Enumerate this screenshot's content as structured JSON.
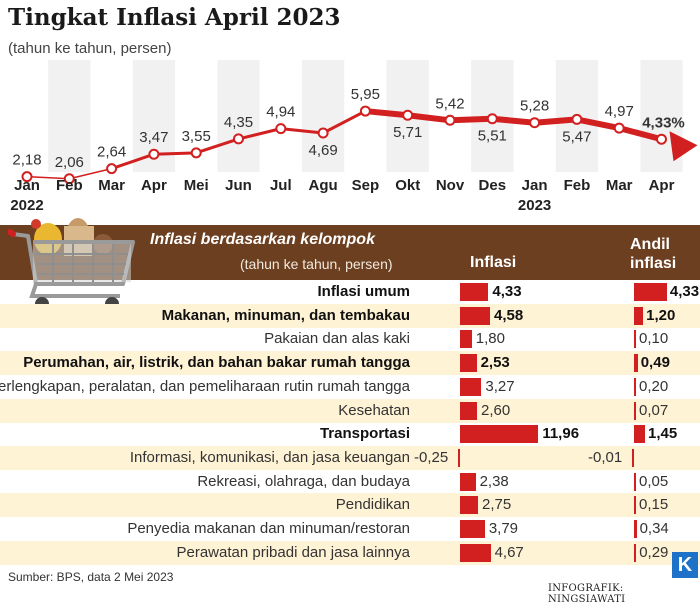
{
  "header": {
    "title": "Tingkat Inflasi April 2023",
    "subtitle": "(tahun ke tahun, persen)"
  },
  "table_header": {
    "group_title": "Inflasi berdasarkan kelompok",
    "group_subtitle": "(tahun ke tahun, persen)",
    "col_inflasi": "Inflasi",
    "col_andil_1": "Andil",
    "col_andil_2": "inflasi"
  },
  "footer": {
    "source": "Sumber: BPS, data 2 Mei 2023",
    "credit": "INFOGRAFIK: NINGSIAWATI",
    "logo": "K"
  },
  "colors": {
    "accent_red": "#d21f1f",
    "header_brown": "#6b3f1f",
    "row_shade": "#fff3d6"
  },
  "icons": [
    "shopping-cart-icon",
    "arrow-right-icon"
  ],
  "chart_data": [
    {
      "type": "line",
      "title": "Tingkat Inflasi April 2023",
      "subtitle": "(tahun ke tahun, persen)",
      "x": [
        "Jan",
        "Feb",
        "Mar",
        "Apr",
        "Mei",
        "Jun",
        "Jul",
        "Agu",
        "Sep",
        "Okt",
        "Nov",
        "Des",
        "Jan",
        "Feb",
        "Mar",
        "Apr"
      ],
      "x_year_labels": {
        "0": "2022",
        "12": "2023"
      },
      "values": [
        2.18,
        2.06,
        2.64,
        3.47,
        3.55,
        4.35,
        4.94,
        4.69,
        5.95,
        5.71,
        5.42,
        5.51,
        5.28,
        5.47,
        4.97,
        4.33
      ],
      "value_labels": [
        "2,18",
        "2,06",
        "2,64",
        "3,47",
        "3,55",
        "4,35",
        "4,94",
        "4,69",
        "5,95",
        "5,71",
        "5,42",
        "5,51",
        "5,28",
        "5,47",
        "4,97",
        "4,33%"
      ],
      "highlight_last": true,
      "grid": "alternating vertical bands"
    },
    {
      "type": "bar",
      "rows": [
        {
          "label": "Inflasi umum",
          "inflasi": 4.33,
          "inflasi_label": "4,33",
          "andil": 4.33,
          "andil_label": "4,33",
          "bold": true
        },
        {
          "label": "Makanan, minuman, dan tembakau",
          "inflasi": 4.58,
          "inflasi_label": "4,58",
          "andil": 1.2,
          "andil_label": "1,20",
          "bold": true
        },
        {
          "label": "Pakaian dan alas kaki",
          "inflasi": 1.8,
          "inflasi_label": "1,80",
          "andil": 0.1,
          "andil_label": "0,10",
          "bold": false
        },
        {
          "label": "Perumahan, air, listrik, dan bahan bakar rumah tangga",
          "inflasi": 2.53,
          "inflasi_label": "2,53",
          "andil": 0.49,
          "andil_label": "0,49",
          "bold": true
        },
        {
          "label": "Perlengkapan, peralatan, dan pemeliharaan rutin rumah tangga",
          "inflasi": 3.27,
          "inflasi_label": "3,27",
          "andil": 0.2,
          "andil_label": "0,20",
          "bold": false
        },
        {
          "label": "Kesehatan",
          "inflasi": 2.6,
          "inflasi_label": "2,60",
          "andil": 0.07,
          "andil_label": "0,07",
          "bold": false
        },
        {
          "label": "Transportasi",
          "inflasi": 11.96,
          "inflasi_label": "11,96",
          "andil": 1.45,
          "andil_label": "1,45",
          "bold": true
        },
        {
          "label": "Informasi, komunikasi, dan jasa keuangan",
          "inflasi": -0.25,
          "inflasi_label": "-0,25",
          "andil": -0.01,
          "andil_label": "-0,01",
          "bold": false
        },
        {
          "label": "Rekreasi, olahraga, dan budaya",
          "inflasi": 2.38,
          "inflasi_label": "2,38",
          "andil": 0.05,
          "andil_label": "0,05",
          "bold": false
        },
        {
          "label": "Pendidikan",
          "inflasi": 2.75,
          "inflasi_label": "2,75",
          "andil": 0.15,
          "andil_label": "0,15",
          "bold": false
        },
        {
          "label": "Penyedia makanan dan minuman/restoran",
          "inflasi": 3.79,
          "inflasi_label": "3,79",
          "andil": 0.34,
          "andil_label": "0,34",
          "bold": false
        },
        {
          "label": "Perawatan pribadi dan jasa lainnya",
          "inflasi": 4.67,
          "inflasi_label": "4,67",
          "andil": 0.29,
          "andil_label": "0,29",
          "bold": false
        }
      ]
    }
  ]
}
